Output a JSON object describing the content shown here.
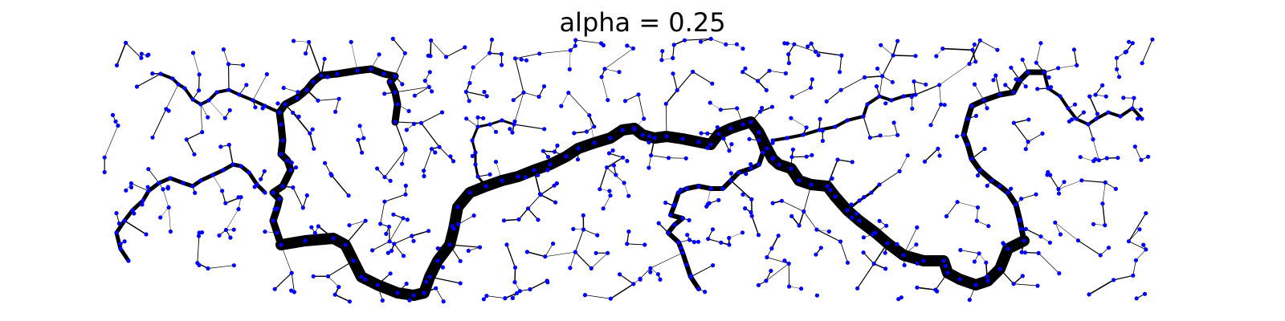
{
  "figure": {
    "title": "alpha = 0.25",
    "node_color": "#0000ff",
    "edge_color": "#000000",
    "background": "#ffffff",
    "approx_node_count": 800,
    "show_axes": false
  }
}
